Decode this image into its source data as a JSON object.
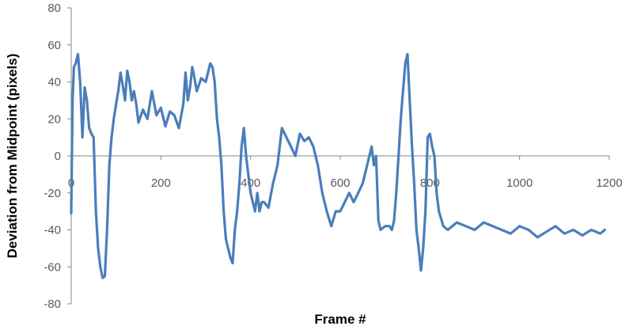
{
  "chart_data": {
    "type": "line",
    "title": "",
    "xlabel": "Frame #",
    "ylabel": "Deviation from Midpoint (pixels)",
    "xlim": [
      0,
      1200
    ],
    "ylim": [
      -80,
      80
    ],
    "xticks": [
      0,
      200,
      400,
      600,
      800,
      1000,
      1200
    ],
    "yticks": [
      -80,
      -60,
      -40,
      -20,
      0,
      20,
      40,
      60,
      80
    ],
    "grid": false,
    "legend": "none",
    "line_color": "#4A7EBB",
    "series": [
      {
        "x": [
          0,
          3,
          6,
          10,
          15,
          20,
          25,
          30,
          35,
          40,
          45,
          50,
          55,
          60,
          65,
          70,
          75,
          80,
          85,
          90,
          95,
          100,
          105,
          110,
          115,
          120,
          125,
          130,
          135,
          140,
          145,
          150,
          160,
          170,
          180,
          190,
          200,
          210,
          220,
          230,
          240,
          250,
          255,
          260,
          265,
          270,
          275,
          280,
          290,
          300,
          310,
          315,
          320,
          325,
          330,
          335,
          340,
          345,
          350,
          355,
          360,
          365,
          370,
          375,
          380,
          385,
          390,
          395,
          400,
          405,
          410,
          415,
          420,
          425,
          430,
          440,
          450,
          460,
          470,
          480,
          490,
          500,
          510,
          520,
          530,
          540,
          550,
          560,
          570,
          580,
          590,
          600,
          610,
          620,
          630,
          640,
          650,
          660,
          665,
          670,
          675,
          680,
          685,
          690,
          700,
          710,
          715,
          720,
          725,
          730,
          735,
          740,
          745,
          750,
          755,
          760,
          765,
          770,
          775,
          780,
          785,
          790,
          795,
          800,
          805,
          810,
          815,
          820,
          830,
          840,
          860,
          880,
          900,
          920,
          940,
          960,
          980,
          1000,
          1020,
          1040,
          1060,
          1080,
          1100,
          1120,
          1140,
          1160,
          1180,
          1190
        ],
        "y": [
          -31,
          30,
          48,
          50,
          55,
          40,
          10,
          37,
          30,
          15,
          12,
          10,
          -30,
          -50,
          -60,
          -66,
          -65,
          -40,
          -5,
          10,
          20,
          28,
          35,
          45,
          38,
          30,
          46,
          40,
          30,
          35,
          28,
          18,
          25,
          20,
          35,
          22,
          26,
          16,
          24,
          22,
          15,
          28,
          45,
          30,
          37,
          48,
          42,
          35,
          42,
          40,
          50,
          48,
          40,
          20,
          10,
          -5,
          -30,
          -45,
          -50,
          -55,
          -58,
          -40,
          -30,
          -15,
          5,
          15,
          0,
          -10,
          -20,
          -25,
          -30,
          -20,
          -30,
          -25,
          -25,
          -28,
          -15,
          -5,
          15,
          10,
          5,
          0,
          12,
          8,
          10,
          5,
          -5,
          -20,
          -30,
          -38,
          -30,
          -30,
          -25,
          -20,
          -25,
          -20,
          -15,
          -5,
          0,
          5,
          -5,
          0,
          -35,
          -40,
          -38,
          -38,
          -40,
          -35,
          -20,
          0,
          20,
          35,
          50,
          55,
          30,
          5,
          -15,
          -40,
          -50,
          -62,
          -50,
          -30,
          10,
          12,
          5,
          0,
          -20,
          -30,
          -38,
          -40,
          -36,
          -38,
          -40,
          -36,
          -38,
          -40,
          -42,
          -38,
          -40,
          -44,
          -41,
          -38,
          -42,
          -40,
          -43,
          -40,
          -42,
          -40
        ]
      }
    ]
  }
}
